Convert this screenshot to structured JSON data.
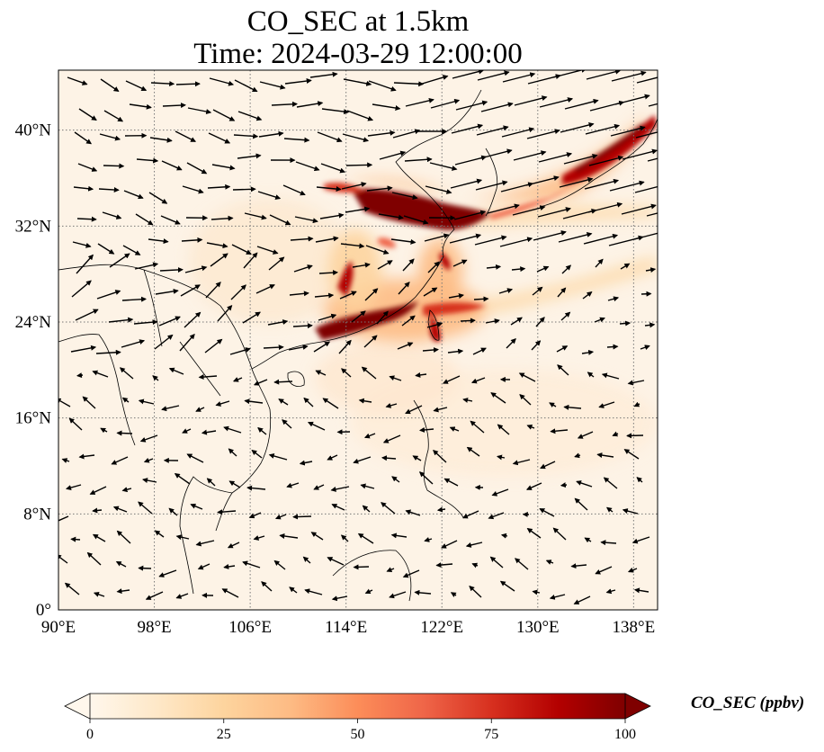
{
  "title": {
    "line1": "CO_SEC at 1.5km",
    "line2": "Time: 2024-03-29 12:00:00"
  },
  "map": {
    "projection": "PlateCarree",
    "lon_range": [
      90,
      140
    ],
    "lat_range": [
      0,
      45
    ],
    "lon_ticks": [
      {
        "value": 90,
        "label": "90°E"
      },
      {
        "value": 98,
        "label": "98°E"
      },
      {
        "value": 106,
        "label": "106°E"
      },
      {
        "value": 114,
        "label": "114°E"
      },
      {
        "value": 122,
        "label": "122°E"
      },
      {
        "value": 130,
        "label": "130°E"
      },
      {
        "value": 138,
        "label": "138°E"
      }
    ],
    "lat_ticks": [
      {
        "value": 0,
        "label": "0°"
      },
      {
        "value": 8,
        "label": "8°N"
      },
      {
        "value": 16,
        "label": "16°N"
      },
      {
        "value": 24,
        "label": "24°N"
      },
      {
        "value": 32,
        "label": "32°N"
      },
      {
        "value": 40,
        "label": "40°N"
      }
    ],
    "gridlines": "dotted",
    "field": "CO_SEC",
    "wind_vectors": true,
    "background_level": 3,
    "plumes": [
      {
        "name": "north-china-plain",
        "lon": 119,
        "lat": 33.5,
        "value": 100
      },
      {
        "name": "yellow-sea-outflow",
        "lon": 124.5,
        "lat": 33,
        "value": 95
      },
      {
        "name": "south-china-coast",
        "lon": 116,
        "lat": 24.5,
        "value": 100
      },
      {
        "name": "central-china",
        "lon": 114,
        "lat": 26.5,
        "value": 80
      },
      {
        "name": "japan-sea-outflow",
        "lon": 135,
        "lat": 37,
        "value": 95
      }
    ]
  },
  "colorbar": {
    "label": "CO_SEC (ppbv)",
    "colormap": "OrRd",
    "min": 0,
    "max": 100,
    "extend": "both",
    "ticks": [
      "0",
      "25",
      "50",
      "75",
      "100"
    ],
    "colors": [
      "#fff7ec",
      "#fee8c8",
      "#fdd49e",
      "#fdbb84",
      "#fc8d59",
      "#ef6548",
      "#d7301f",
      "#b30000",
      "#7f0000"
    ]
  }
}
